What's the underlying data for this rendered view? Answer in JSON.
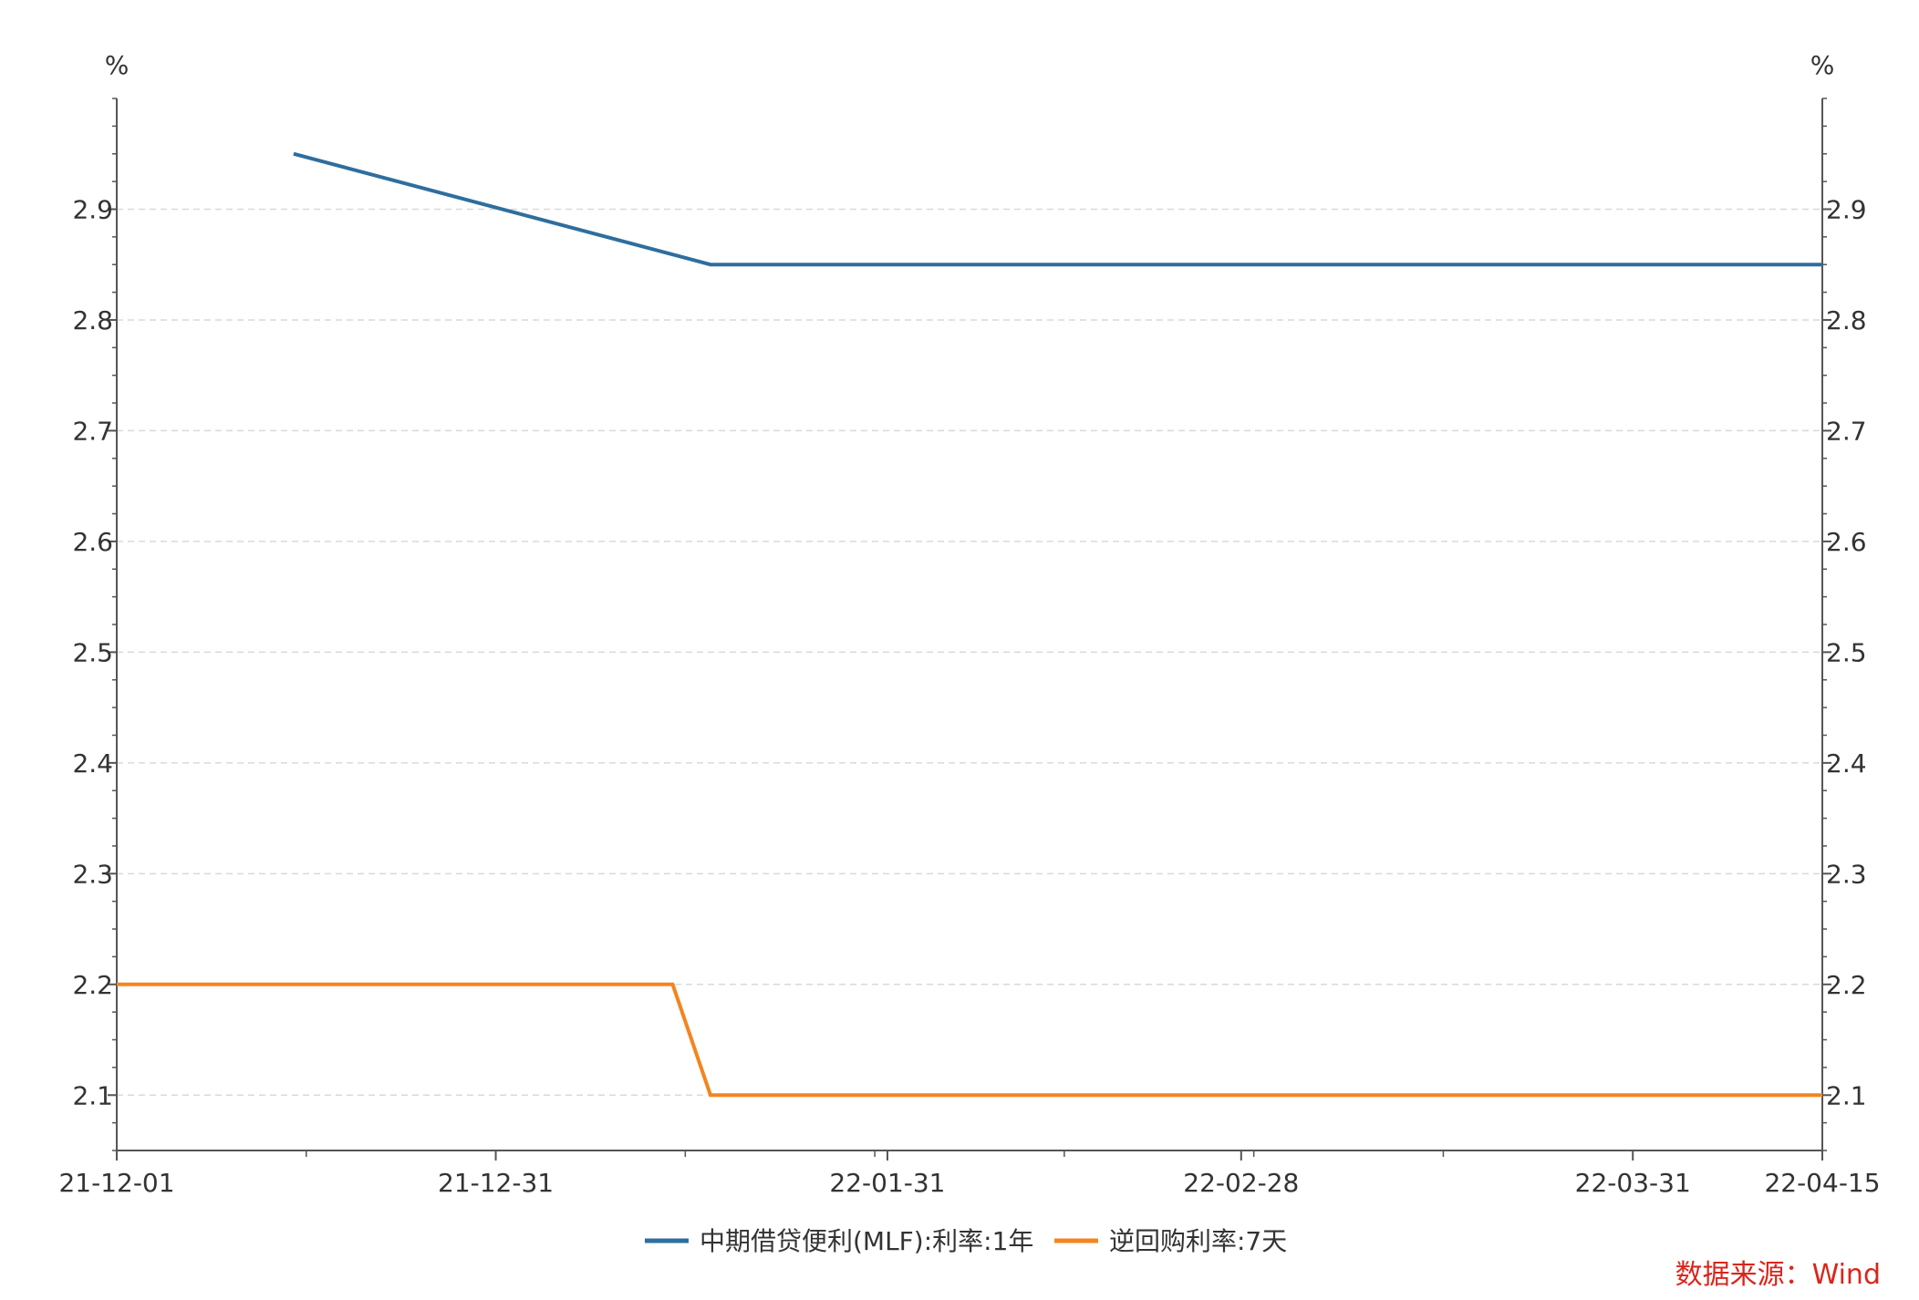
{
  "chart_data": {
    "type": "line",
    "title": "",
    "xlabel": "",
    "ylabel": "%",
    "ylabel_right": "%",
    "ylim": [
      2.05,
      3.0
    ],
    "y_ticks": [
      "2.1",
      "2.2",
      "2.3",
      "2.4",
      "2.5",
      "2.6",
      "2.7",
      "2.8",
      "2.9"
    ],
    "x_ticks": [
      "21-12-01",
      "21-12-31",
      "22-01-31",
      "22-02-28",
      "22-03-31",
      "22-04-15"
    ],
    "x_range": [
      "2021-12-01",
      "2022-04-15"
    ],
    "grid": true,
    "legend_position": "bottom-center",
    "series": [
      {
        "name": "中期借贷便利(MLF):利率:1年",
        "color": "#2E6E9E",
        "points": [
          {
            "x": "2021-12-15",
            "y": 2.95
          },
          {
            "x": "2022-01-17",
            "y": 2.85
          },
          {
            "x": "2022-04-15",
            "y": 2.85
          }
        ]
      },
      {
        "name": "逆回购利率:7天",
        "color": "#F5841F",
        "points": [
          {
            "x": "2021-12-01",
            "y": 2.2
          },
          {
            "x": "2022-01-14",
            "y": 2.2
          },
          {
            "x": "2022-01-17",
            "y": 2.1
          },
          {
            "x": "2022-04-15",
            "y": 2.1
          }
        ]
      }
    ],
    "source": "数据来源：Wind",
    "source_color": "#D9261C"
  }
}
